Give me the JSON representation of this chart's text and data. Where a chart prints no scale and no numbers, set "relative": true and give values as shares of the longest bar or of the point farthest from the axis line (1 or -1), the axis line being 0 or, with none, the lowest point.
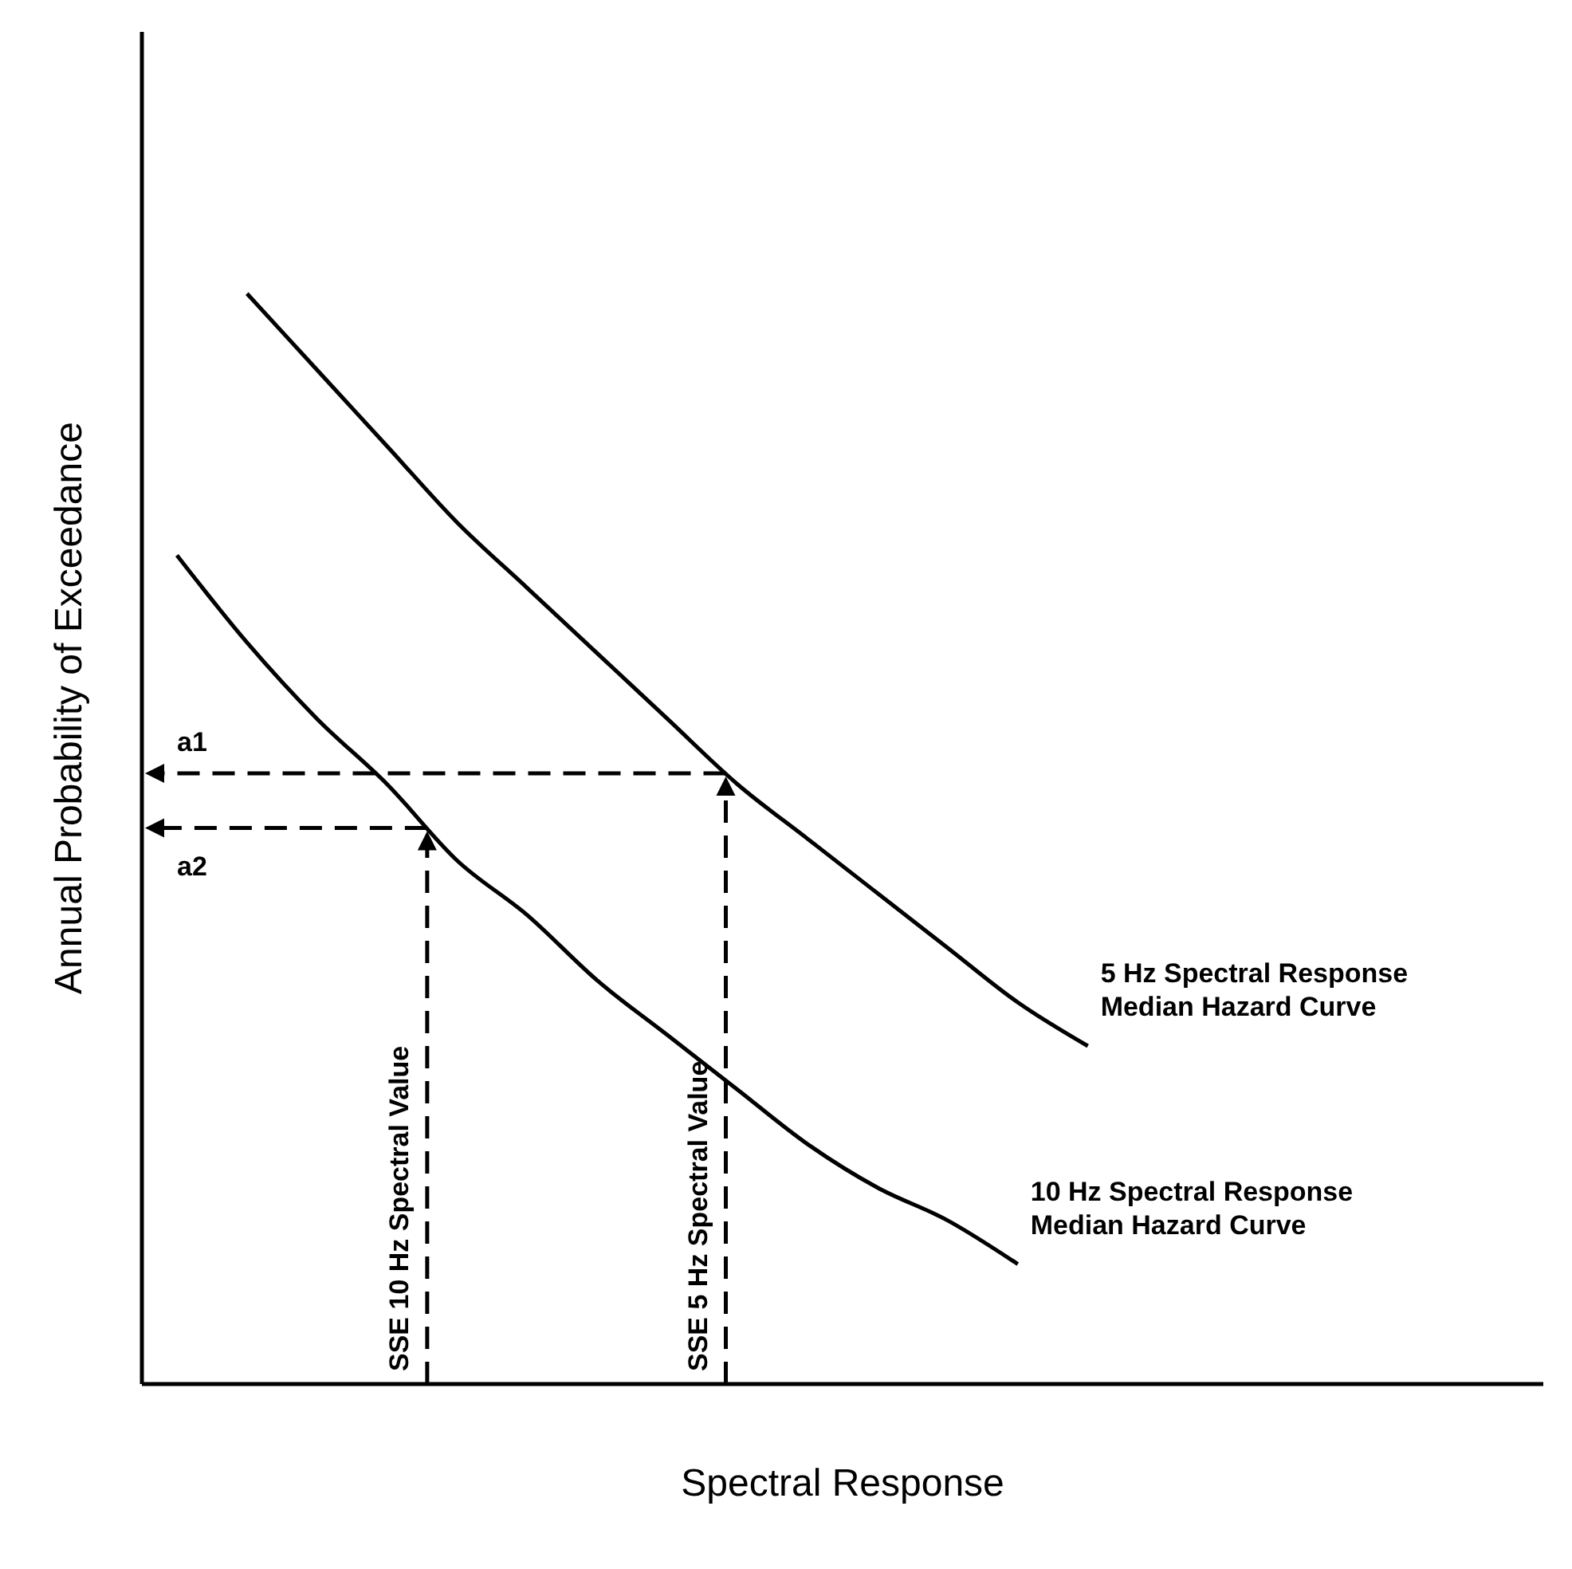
{
  "chart_data": {
    "type": "line",
    "relative": true,
    "xlabel": "Spectral Response",
    "ylabel": "Annual Probability of Exceedance",
    "categories": [
      null,
      null,
      null,
      null,
      null,
      null,
      null,
      null,
      null,
      null,
      null,
      null,
      null,
      null,
      null,
      null,
      null,
      null,
      null,
      null
    ],
    "series": [
      {
        "name": "5 Hz Spectral Response Median Hazard Curve",
        "color": "#000000",
        "values": [
          null,
          1,
          0.93,
          0.86,
          0.79,
          0.73,
          0.67,
          0.61,
          0.55,
          0.5,
          0.45,
          0.4,
          0.35,
          0.31,
          null,
          null,
          null,
          null,
          null,
          null
        ]
      },
      {
        "name": "10 Hz Spectral Response Median Hazard Curve",
        "color": "#000000",
        "values": [
          0.76,
          0.68,
          0.61,
          0.55,
          0.48,
          0.43,
          0.37,
          0.32,
          0.27,
          0.22,
          0.18,
          0.15,
          0.11,
          null,
          null,
          null,
          null,
          null,
          null,
          null
        ]
      }
    ],
    "ref_lines": [
      {
        "axis": "y",
        "value": 0.56,
        "label": "a1",
        "color": "#000000",
        "line_style": "dashed"
      },
      {
        "axis": "y",
        "value": 0.51,
        "label": "a2",
        "color": "#000000",
        "line_style": "dashed"
      }
    ],
    "annotations": [
      "SSE 10 Hz Spectral Value",
      "SSE 5 Hz Spectral Value"
    ]
  }
}
